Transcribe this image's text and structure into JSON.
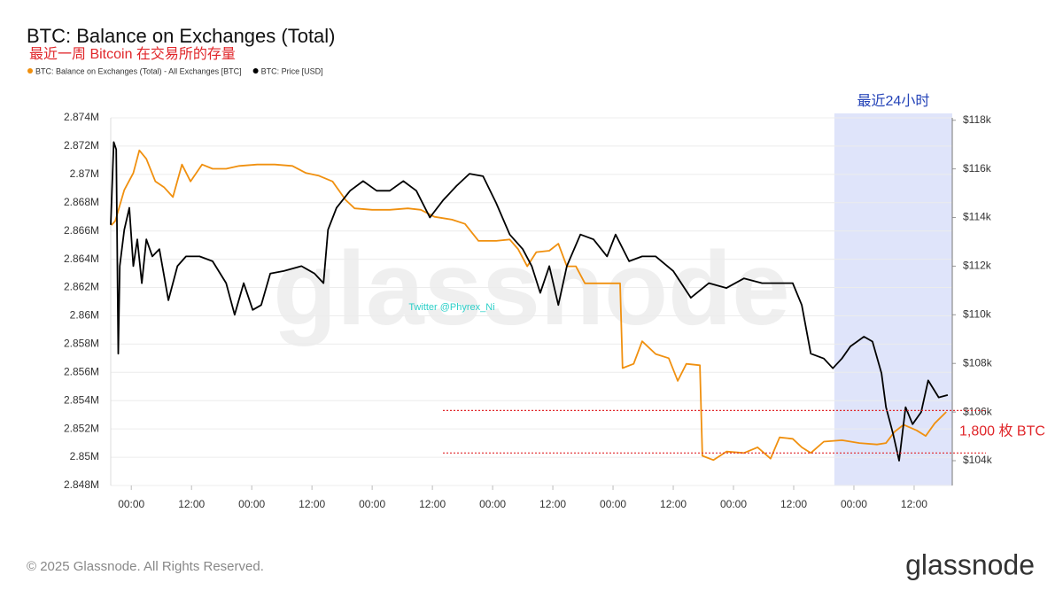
{
  "chart_data": {
    "type": "line",
    "title": "BTC: Balance on Exchanges (Total)",
    "subtitle": "最近一周 Bitcoin 在交易所的存量",
    "watermark": "glassnode",
    "annotation_twitter": "Twitter @Phyrex_Ni",
    "footer": "© 2025 Glassnode. All Rights Reserved.",
    "logo": "glassnode",
    "xlim": [
      -4.1,
      163.6
    ],
    "xticks": [
      {
        "value": 0,
        "label": "00:00"
      },
      {
        "value": 12,
        "label": "12:00"
      },
      {
        "value": 24,
        "label": "00:00"
      },
      {
        "value": 36,
        "label": "12:00"
      },
      {
        "value": 48,
        "label": "00:00"
      },
      {
        "value": 60,
        "label": "12:00"
      },
      {
        "value": 72,
        "label": "00:00"
      },
      {
        "value": 84,
        "label": "12:00"
      },
      {
        "value": 96,
        "label": "00:00"
      },
      {
        "value": 108,
        "label": "12:00"
      },
      {
        "value": 120,
        "label": "00:00"
      },
      {
        "value": 132,
        "label": "12:00"
      },
      {
        "value": 144,
        "label": "00:00"
      },
      {
        "value": 156,
        "label": "12:00"
      }
    ],
    "ylim": [
      2848000,
      2874000
    ],
    "yticks": [
      {
        "value": 2848000,
        "label": "2.848M"
      },
      {
        "value": 2850000,
        "label": "2.85M"
      },
      {
        "value": 2852000,
        "label": "2.852M"
      },
      {
        "value": 2854000,
        "label": "2.854M"
      },
      {
        "value": 2856000,
        "label": "2.856M"
      },
      {
        "value": 2858000,
        "label": "2.858M"
      },
      {
        "value": 2860000,
        "label": "2.86M"
      },
      {
        "value": 2862000,
        "label": "2.862M"
      },
      {
        "value": 2864000,
        "label": "2.864M"
      },
      {
        "value": 2866000,
        "label": "2.866M"
      },
      {
        "value": 2868000,
        "label": "2.868M"
      },
      {
        "value": 2870000,
        "label": "2.87M"
      },
      {
        "value": 2872000,
        "label": "2.872M"
      },
      {
        "value": 2874000,
        "label": "2.874M"
      }
    ],
    "y2lim": [
      102980,
      118100
    ],
    "y2ticks": [
      {
        "value": 104000,
        "label": "$104k"
      },
      {
        "value": 106000,
        "label": "$106k"
      },
      {
        "value": 108000,
        "label": "$108k"
      },
      {
        "value": 110000,
        "label": "$110k"
      },
      {
        "value": 112000,
        "label": "$112k"
      },
      {
        "value": 114000,
        "label": "$114k"
      },
      {
        "value": 116000,
        "label": "$116k"
      },
      {
        "value": 118000,
        "label": "$118k"
      }
    ],
    "grid": true,
    "highlight": {
      "from": 140.1,
      "to": 163.6,
      "label": "最近24小时",
      "color": "#dfe4fa"
    },
    "reference_lines": {
      "x_from": 62.1,
      "values": [
        2853300,
        2850300
      ],
      "color": "#e0262a",
      "label": "1,800 枚 BTC"
    },
    "series": [
      {
        "name": "BTC: Balance on Exchanges (Total) - All Exchanges [BTC]",
        "color": "#f0900f",
        "axis": "y",
        "x": [
          -4,
          -3.2,
          -1.4,
          0.4,
          1.6,
          3.0,
          4.8,
          6.5,
          8.3,
          10.1,
          11.8,
          14.1,
          16.2,
          18.9,
          21.5,
          25.1,
          28.6,
          32.1,
          34.8,
          37.4,
          40.1,
          42.7,
          44.5,
          48.0,
          51.5,
          55.1,
          57.7,
          60.4,
          63.9,
          66.5,
          69.2,
          72.7,
          75.4,
          77.1,
          78.9,
          80.7,
          83.3,
          85.1,
          86.8,
          88.6,
          90.4,
          93.9,
          97.4,
          97.9,
          100.1,
          101.8,
          104.5,
          107.1,
          108.9,
          110.6,
          113.3,
          113.8,
          116.0,
          118.6,
          122.1,
          124.8,
          127.4,
          129.2,
          131.8,
          133.6,
          135.4,
          138.0,
          141.6,
          145.1,
          148.6,
          150.4,
          152.1,
          153.9,
          156.5,
          158.3,
          160.1,
          162.4
        ],
        "values": [
          2866400,
          2866700,
          2868900,
          2870100,
          2871700,
          2871100,
          2869500,
          2869100,
          2868400,
          2870700,
          2869500,
          2870700,
          2870400,
          2870400,
          2870600,
          2870700,
          2870700,
          2870600,
          2870100,
          2869900,
          2869500,
          2868200,
          2867600,
          2867500,
          2867500,
          2867600,
          2867500,
          2867000,
          2866800,
          2866500,
          2865300,
          2865300,
          2865400,
          2864700,
          2863500,
          2864500,
          2864600,
          2865100,
          2863500,
          2863500,
          2862300,
          2862300,
          2862300,
          2856300,
          2856600,
          2858200,
          2857300,
          2857000,
          2855400,
          2856600,
          2856500,
          2850100,
          2849800,
          2850400,
          2850300,
          2850700,
          2849900,
          2851400,
          2851300,
          2850700,
          2850300,
          2851100,
          2851200,
          2851000,
          2850900,
          2851000,
          2851800,
          2852300,
          2851900,
          2851500,
          2852400,
          2853200
        ]
      },
      {
        "name": "BTC: Price [USD]",
        "color": "#000000",
        "axis": "y2",
        "x": [
          -4.1,
          -3.5,
          -3.0,
          -2.6,
          -2.3,
          -1.4,
          -0.4,
          0.4,
          1.2,
          2.1,
          3.0,
          4.2,
          5.6,
          7.4,
          9.2,
          10.9,
          13.6,
          16.2,
          18.9,
          20.6,
          22.4,
          24.2,
          25.9,
          27.7,
          30.4,
          33.9,
          36.5,
          38.3,
          39.2,
          40.9,
          43.6,
          46.2,
          48.9,
          51.5,
          54.2,
          56.8,
          59.5,
          62.1,
          64.8,
          67.4,
          70.1,
          72.7,
          75.4,
          78.0,
          79.8,
          81.5,
          83.3,
          85.1,
          86.8,
          89.5,
          92.1,
          94.8,
          96.5,
          99.2,
          101.8,
          104.5,
          108.0,
          111.5,
          115.1,
          118.6,
          122.1,
          125.7,
          129.2,
          131.8,
          133.6,
          135.4,
          138.0,
          139.8,
          141.6,
          143.3,
          146.0,
          147.7,
          149.5,
          150.4,
          151.8,
          153.0,
          154.3,
          155.7,
          157.4,
          158.8,
          160.9,
          162.7
        ],
        "values": [
          113700,
          117100,
          116800,
          108400,
          112000,
          113500,
          114400,
          112000,
          113100,
          111300,
          113100,
          112400,
          112700,
          110600,
          112000,
          112400,
          112400,
          112200,
          111300,
          110000,
          111300,
          110200,
          110400,
          111700,
          111800,
          112000,
          111700,
          111300,
          113500,
          114400,
          115100,
          115500,
          115100,
          115100,
          115500,
          115100,
          114000,
          114700,
          115300,
          115800,
          115700,
          114600,
          113300,
          112700,
          112000,
          110900,
          112000,
          110400,
          112000,
          113300,
          113100,
          112400,
          113300,
          112200,
          112400,
          112400,
          111800,
          110700,
          111300,
          111100,
          111500,
          111300,
          111300,
          111300,
          110400,
          108400,
          108200,
          107800,
          108200,
          108700,
          109100,
          108900,
          107600,
          106200,
          105100,
          104000,
          106200,
          105500,
          106000,
          107300,
          106600,
          106700
        ]
      }
    ]
  }
}
